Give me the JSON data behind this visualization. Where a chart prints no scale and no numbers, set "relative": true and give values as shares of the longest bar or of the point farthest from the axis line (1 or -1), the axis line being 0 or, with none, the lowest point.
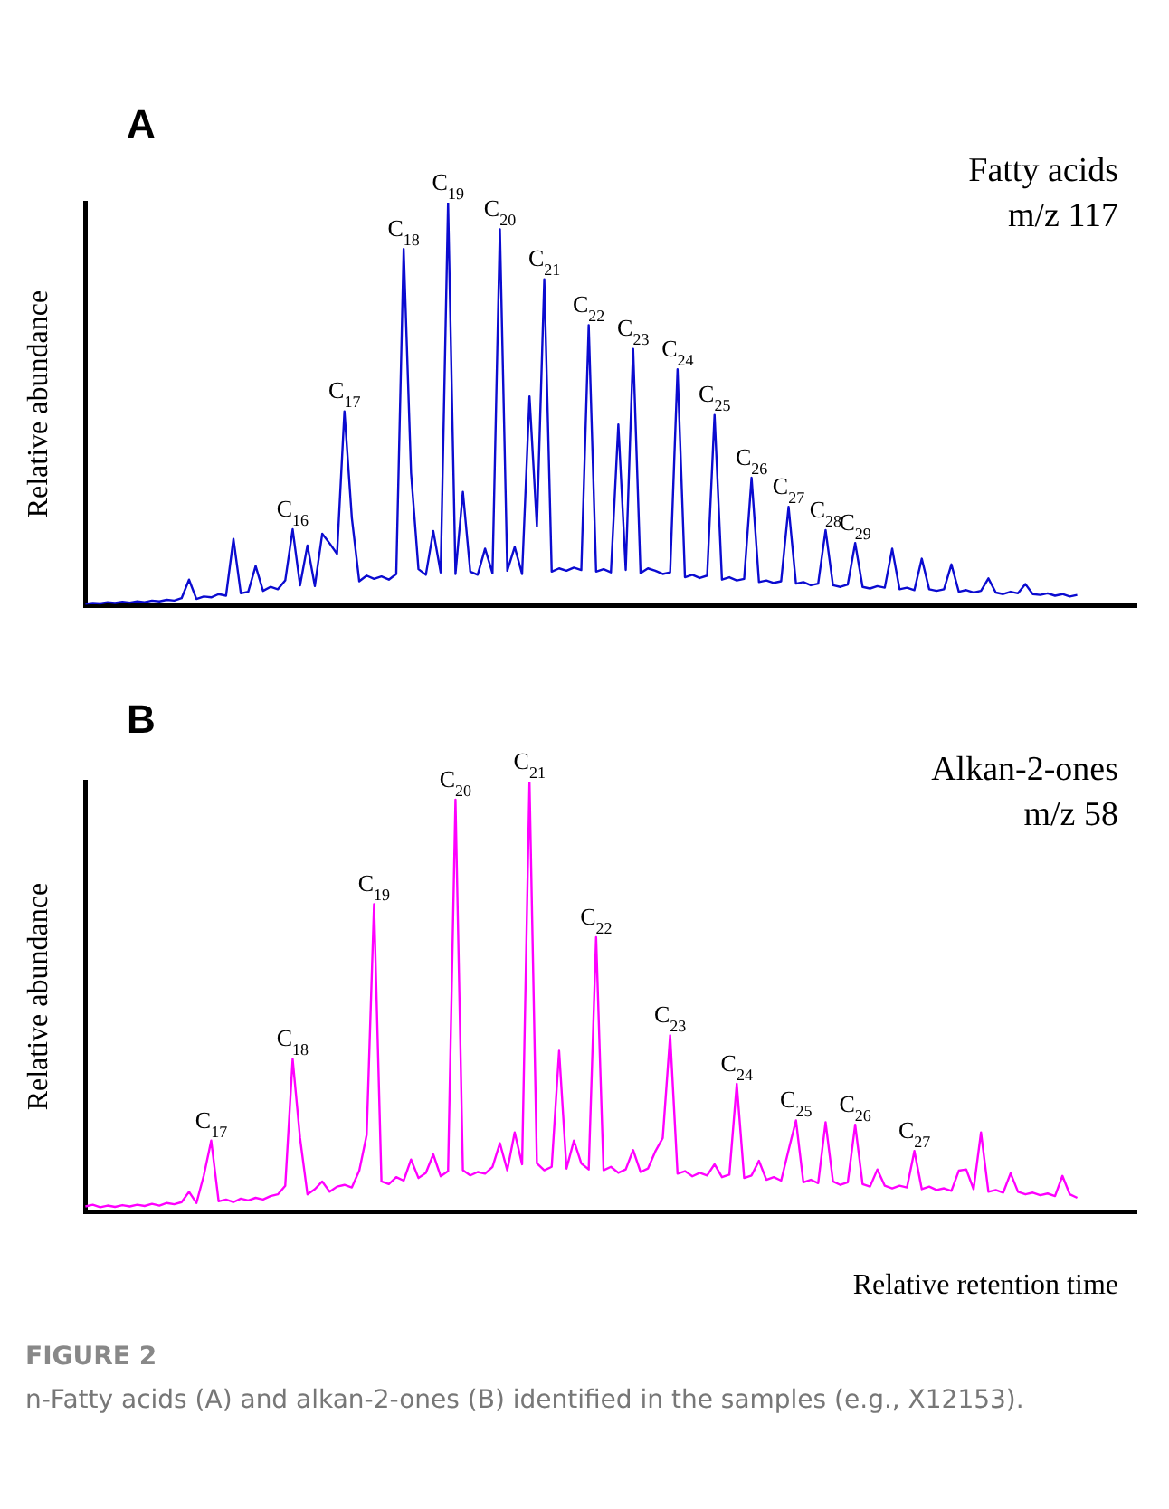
{
  "chart_data": [
    {
      "type": "line",
      "title": "A",
      "annotations": [
        "Fatty acids",
        "m/z 117",
        {
          "text": "C$_{16}$",
          "y": 0.189
        },
        {
          "text": "C$_{17}$",
          "y": 0.482
        },
        {
          "text": "C$_{18}$",
          "y": 0.885
        },
        {
          "text": "C$_{19}$",
          "y": 1.0
        },
        {
          "text": "C$_{20}$",
          "y": 0.934
        },
        {
          "text": "C$_{21}$",
          "y": 0.81
        },
        {
          "text": "C$_{22}$",
          "y": 0.696
        },
        {
          "text": "C$_{23}$",
          "y": 0.637
        },
        {
          "text": "C$_{24}$",
          "y": 0.586
        },
        {
          "text": "C$_{25}$",
          "y": 0.473
        },
        {
          "text": "C$_{26}$",
          "y": 0.317
        },
        {
          "text": "C$_{27}$",
          "y": 0.245
        },
        {
          "text": "C$_{28}$",
          "y": 0.187
        },
        {
          "text": "C$_{29}$",
          "y": 0.155
        }
      ],
      "ylabel": "Relative abundance",
      "relative": true,
      "categories": [
        null,
        null,
        null,
        null,
        null,
        null,
        null,
        null,
        null,
        null,
        null,
        null,
        null,
        null,
        null,
        null,
        null,
        null,
        null,
        null,
        null,
        null,
        null,
        null,
        null,
        null,
        null,
        null,
        null,
        null,
        null,
        null,
        null,
        null,
        null,
        null,
        null,
        null,
        null,
        null,
        null,
        null,
        null,
        null,
        null,
        null,
        null,
        null,
        null,
        null,
        null,
        null,
        null,
        null,
        null,
        null,
        null,
        null,
        null,
        null,
        null,
        null,
        null,
        null,
        null,
        null,
        null,
        null,
        null,
        null,
        null,
        null,
        null,
        null,
        null,
        null,
        null,
        null,
        null,
        null,
        null,
        null,
        null,
        null,
        null,
        null,
        null,
        null,
        null,
        null,
        null,
        null,
        null,
        null,
        null,
        null,
        null,
        null,
        null,
        null,
        null,
        null,
        null,
        null,
        null,
        null,
        null,
        null,
        null,
        null,
        null,
        null,
        null,
        null,
        null,
        null,
        null,
        null,
        null,
        null,
        null,
        null,
        null,
        null,
        null,
        null,
        null,
        null,
        null,
        null,
        null,
        null,
        null,
        null,
        null,
        null,
        null,
        null,
        null,
        null,
        null,
        null,
        null
      ],
      "series": [
        {
          "color": "#0b0bd0",
          "values": [
            0.004,
            0.006,
            0.005,
            0.008,
            0.006,
            0.009,
            0.007,
            0.01,
            0.008,
            0.012,
            0.01,
            0.014,
            0.012,
            0.018,
            0.064,
            0.016,
            0.022,
            0.02,
            0.028,
            0.024,
            0.165,
            0.03,
            0.034,
            0.098,
            0.036,
            0.046,
            0.04,
            0.062,
            0.189,
            0.05,
            0.149,
            0.048,
            0.178,
            0.154,
            0.128,
            0.482,
            0.217,
            0.06,
            0.074,
            0.066,
            0.072,
            0.064,
            0.078,
            0.885,
            0.329,
            0.09,
            0.076,
            0.185,
            0.082,
            1.0,
            0.078,
            0.282,
            0.084,
            0.076,
            0.141,
            0.08,
            0.934,
            0.086,
            0.145,
            0.078,
            0.519,
            0.196,
            0.81,
            0.084,
            0.092,
            0.086,
            0.094,
            0.088,
            0.696,
            0.084,
            0.09,
            0.082,
            0.449,
            0.088,
            0.637,
            0.08,
            0.092,
            0.086,
            0.078,
            0.082,
            0.586,
            0.07,
            0.076,
            0.068,
            0.074,
            0.473,
            0.064,
            0.07,
            0.062,
            0.066,
            0.317,
            0.058,
            0.062,
            0.056,
            0.06,
            0.245,
            0.054,
            0.058,
            0.05,
            0.054,
            0.187,
            0.05,
            0.046,
            0.052,
            0.155,
            0.046,
            0.042,
            0.048,
            0.044,
            0.141,
            0.04,
            0.044,
            0.038,
            0.116,
            0.04,
            0.036,
            0.04,
            0.102,
            0.034,
            0.038,
            0.032,
            0.036,
            0.067,
            0.032,
            0.028,
            0.034,
            0.03,
            0.053,
            0.028,
            0.026,
            0.03,
            0.024,
            0.028,
            0.022,
            0.026,
            null,
            null,
            null,
            null,
            null,
            null,
            null,
            null
          ]
        }
      ]
    },
    {
      "type": "line",
      "title": "B",
      "annotations": [
        "Alkan-2-ones",
        "m/z 58",
        "FIGURE 2",
        "n-Fatty acids (A) and alkan-2-ones (B) identified in the samples (e.g., X12153).",
        {
          "text": "C$_{17}$",
          "y": 0.165
        },
        {
          "text": "C$_{18}$",
          "y": 0.355
        },
        {
          "text": "C$_{19}$",
          "y": 0.715
        },
        {
          "text": "C$_{20}$",
          "y": 0.958
        },
        {
          "text": "C$_{21}$",
          "y": 1.0
        },
        {
          "text": "C$_{22}$",
          "y": 0.638
        },
        {
          "text": "C$_{23}$",
          "y": 0.41
        },
        {
          "text": "C$_{24}$",
          "y": 0.297
        },
        {
          "text": "C$_{25}$",
          "y": 0.212
        },
        {
          "text": "C$_{26}$",
          "y": 0.202
        },
        {
          "text": "C$_{27}$",
          "y": 0.141
        }
      ],
      "ylabel": "Relative abundance",
      "xlabel": "Relative retention time",
      "relative": true,
      "categories": [
        null,
        null,
        null,
        null,
        null,
        null,
        null,
        null,
        null,
        null,
        null,
        null,
        null,
        null,
        null,
        null,
        null,
        null,
        null,
        null,
        null,
        null,
        null,
        null,
        null,
        null,
        null,
        null,
        null,
        null,
        null,
        null,
        null,
        null,
        null,
        null,
        null,
        null,
        null,
        null,
        null,
        null,
        null,
        null,
        null,
        null,
        null,
        null,
        null,
        null,
        null,
        null,
        null,
        null,
        null,
        null,
        null,
        null,
        null,
        null,
        null,
        null,
        null,
        null,
        null,
        null,
        null,
        null,
        null,
        null,
        null,
        null,
        null,
        null,
        null,
        null,
        null,
        null,
        null,
        null,
        null,
        null,
        null,
        null,
        null,
        null,
        null,
        null,
        null,
        null,
        null,
        null,
        null,
        null,
        null,
        null,
        null,
        null,
        null,
        null,
        null,
        null,
        null,
        null,
        null,
        null,
        null,
        null,
        null,
        null,
        null,
        null,
        null,
        null,
        null,
        null,
        null,
        null,
        null,
        null,
        null,
        null,
        null,
        null,
        null,
        null,
        null,
        null,
        null,
        null,
        null,
        null,
        null,
        null,
        null,
        null,
        null,
        null,
        null,
        null,
        null,
        null,
        null
      ],
      "series": [
        {
          "color": "#ff00ff",
          "values": [
            0.012,
            0.016,
            0.01,
            0.014,
            0.011,
            0.015,
            0.012,
            0.016,
            0.013,
            0.018,
            0.014,
            0.02,
            0.017,
            0.022,
            0.046,
            0.02,
            0.084,
            0.165,
            0.024,
            0.028,
            0.022,
            0.03,
            0.026,
            0.032,
            0.028,
            0.036,
            0.04,
            0.06,
            0.355,
            0.171,
            0.04,
            0.052,
            0.07,
            0.046,
            0.058,
            0.062,
            0.056,
            0.095,
            0.178,
            0.715,
            0.07,
            0.064,
            0.08,
            0.072,
            0.121,
            0.078,
            0.09,
            0.133,
            0.082,
            0.094,
            0.958,
            0.096,
            0.084,
            0.092,
            0.088,
            0.104,
            0.159,
            0.096,
            0.184,
            0.11,
            1.0,
            0.112,
            0.096,
            0.104,
            0.374,
            0.1,
            0.165,
            0.112,
            0.098,
            0.638,
            0.096,
            0.104,
            0.09,
            0.098,
            0.143,
            0.092,
            0.1,
            0.14,
            0.171,
            0.41,
            0.088,
            0.094,
            0.082,
            0.09,
            0.084,
            0.11,
            0.08,
            0.086,
            0.297,
            0.078,
            0.084,
            0.118,
            0.074,
            0.08,
            0.072,
            0.143,
            0.212,
            0.068,
            0.074,
            0.066,
            0.208,
            0.07,
            0.062,
            0.068,
            0.202,
            0.064,
            0.058,
            0.098,
            0.06,
            0.054,
            0.06,
            0.056,
            0.141,
            0.052,
            0.058,
            0.05,
            0.054,
            0.048,
            0.095,
            0.098,
            0.052,
            0.184,
            0.046,
            0.05,
            0.044,
            0.089,
            0.046,
            0.04,
            0.044,
            0.038,
            0.042,
            0.036,
            0.083,
            0.04,
            0.032,
            null,
            null,
            null,
            null,
            null,
            null,
            null,
            null
          ]
        }
      ]
    }
  ]
}
